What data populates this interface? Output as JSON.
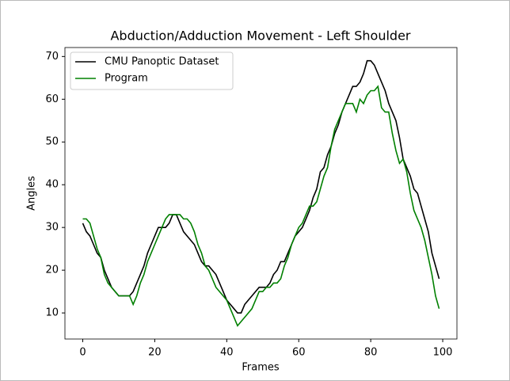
{
  "chart_data": {
    "type": "line",
    "title": "Abduction/Adduction Movement - Left Shoulder",
    "x_label": "Frames",
    "y_label": "Angles",
    "x": [
      0,
      1,
      2,
      3,
      4,
      5,
      6,
      7,
      8,
      9,
      10,
      11,
      12,
      13,
      14,
      15,
      16,
      17,
      18,
      19,
      20,
      21,
      22,
      23,
      24,
      25,
      26,
      27,
      28,
      29,
      30,
      31,
      32,
      33,
      34,
      35,
      36,
      37,
      38,
      39,
      40,
      41,
      42,
      43,
      44,
      45,
      46,
      47,
      48,
      49,
      50,
      51,
      52,
      53,
      54,
      55,
      56,
      57,
      58,
      59,
      60,
      61,
      62,
      63,
      64,
      65,
      66,
      67,
      68,
      69,
      70,
      71,
      72,
      73,
      74,
      75,
      76,
      77,
      78,
      79,
      80,
      81,
      82,
      83,
      84,
      85,
      86,
      87,
      88,
      89,
      90,
      91,
      92,
      93,
      94,
      95,
      96,
      97,
      98,
      99
    ],
    "series": [
      {
        "name": "CMU Panoptic Dataset",
        "color": "#000000",
        "values": [
          31,
          29,
          28,
          26,
          24,
          23,
          20,
          18,
          16,
          15,
          14,
          14,
          14,
          14,
          15,
          17,
          19,
          21,
          24,
          26,
          28,
          30,
          30,
          30,
          31,
          33,
          33,
          31,
          29,
          28,
          27,
          26,
          24,
          22,
          21,
          21,
          20,
          19,
          17,
          15,
          13,
          12,
          11,
          10,
          10,
          12,
          13,
          14,
          15,
          16,
          16,
          16,
          17,
          19,
          20,
          22,
          22,
          24,
          26,
          28,
          29,
          30,
          32,
          34,
          37,
          39,
          43,
          44,
          47,
          49,
          52,
          54,
          57,
          59,
          61,
          63,
          63,
          64,
          66,
          69,
          69,
          68,
          66,
          64,
          62,
          59,
          57,
          55,
          51,
          46,
          44,
          42,
          39,
          38,
          35,
          32,
          29,
          24,
          21,
          18
        ]
      },
      {
        "name": "Program",
        "color": "#008000",
        "values": [
          32,
          32,
          31,
          28,
          25,
          23,
          19,
          17,
          16,
          15,
          14,
          14,
          14,
          14,
          12,
          14,
          17,
          19,
          22,
          24,
          26,
          28,
          30,
          32,
          33,
          33,
          33,
          33,
          32,
          32,
          31,
          29,
          26,
          24,
          21,
          20,
          18,
          16,
          15,
          14,
          13,
          11,
          9,
          7,
          8,
          9,
          10,
          11,
          13,
          15,
          15,
          16,
          16,
          17,
          17,
          18,
          21,
          23,
          26,
          28,
          30,
          31,
          33,
          35,
          35,
          36,
          39,
          42,
          44,
          49,
          53,
          55,
          57,
          59,
          59,
          59,
          57,
          60,
          59,
          61,
          62,
          62,
          63,
          58,
          57,
          57,
          52,
          48,
          45,
          46,
          43,
          38,
          34,
          32,
          30,
          27,
          23,
          19,
          14,
          11
        ]
      }
    ],
    "xlim": [
      -4.95,
      103.95
    ],
    "ylim": [
      3.9,
      72.1
    ],
    "xticks": [
      0,
      20,
      40,
      60,
      80,
      100
    ],
    "yticks": [
      10,
      20,
      30,
      40,
      50,
      60,
      70
    ],
    "legend": "upper left"
  }
}
